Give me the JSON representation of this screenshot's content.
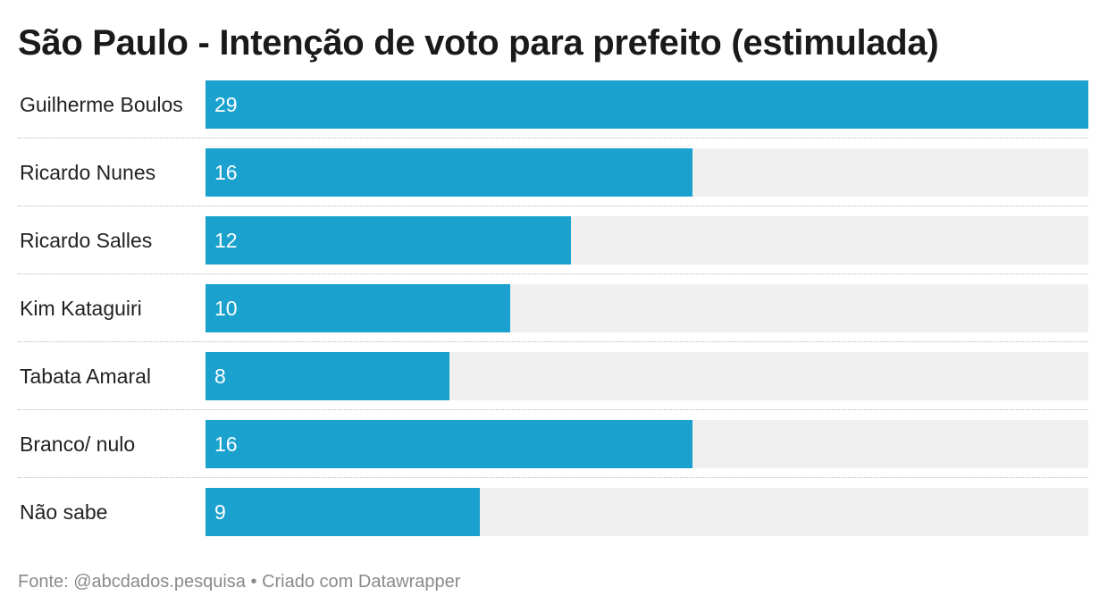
{
  "chart_data": {
    "type": "bar",
    "orientation": "horizontal",
    "title": "São Paulo - Intenção de voto para prefeito (estimulada)",
    "categories": [
      "Guilherme Boulos",
      "Ricardo Nunes",
      "Ricardo Salles",
      "Kim Kataguiri",
      "Tabata Amaral",
      "Branco/ nulo",
      "Não sabe"
    ],
    "values": [
      29,
      16,
      12,
      10,
      8,
      16,
      9
    ],
    "xlim": [
      0,
      29
    ],
    "grid": false,
    "bar_color": "#1aa1ce",
    "track_color": "#f0f0f0"
  },
  "footer": {
    "source": "Fonte: @abcdados.pesquisa",
    "separator": "•",
    "credit": "Criado com Datawrapper"
  }
}
